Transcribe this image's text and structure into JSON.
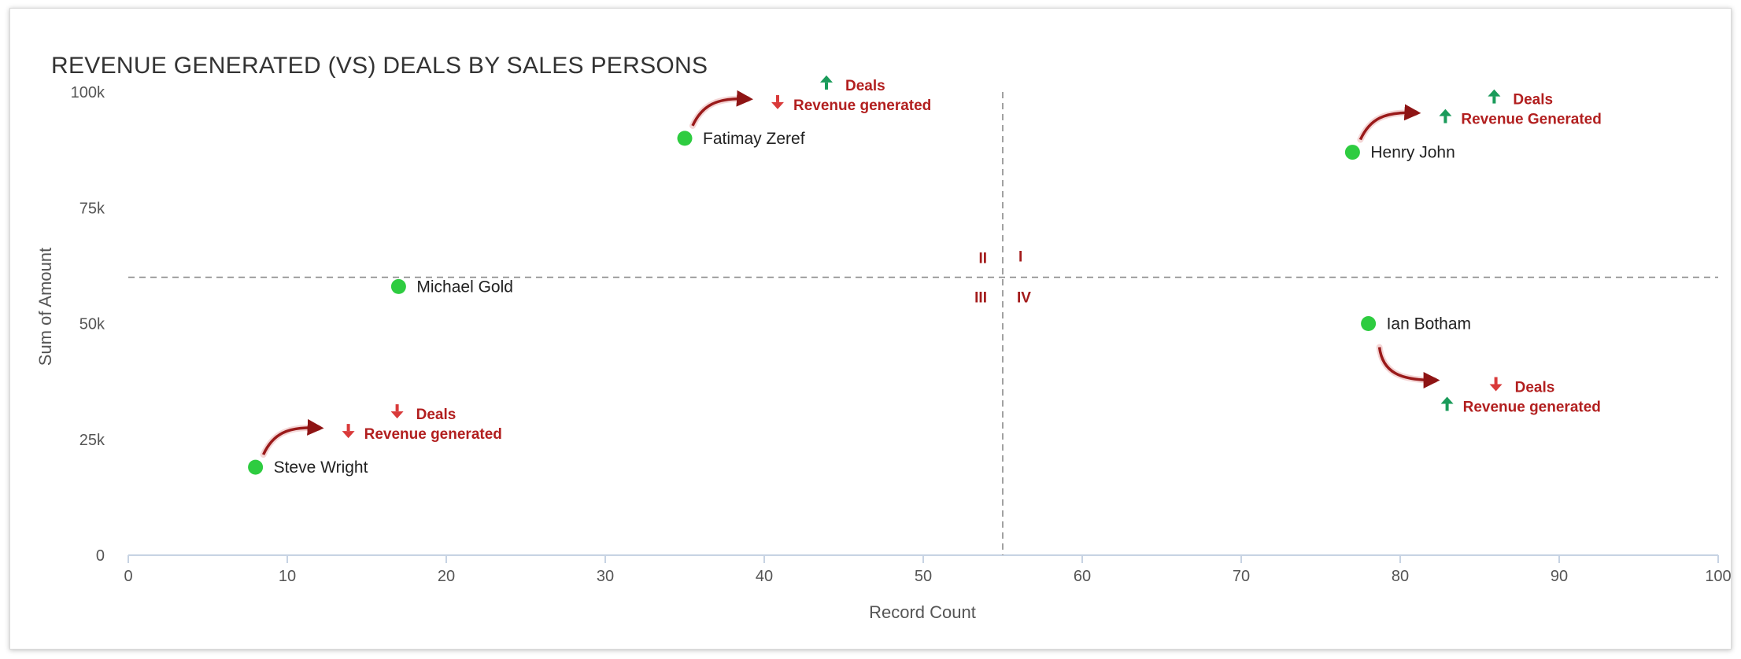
{
  "chart_data": {
    "type": "scatter",
    "title": "REVENUE GENERATED (VS) DEALS BY SALES PERSONS",
    "xlabel": "Record Count",
    "ylabel": "Sum of Amount",
    "xlim": [
      0,
      100
    ],
    "ylim": [
      0,
      100000
    ],
    "x_ticks": [
      {
        "value": 0,
        "label": "0"
      },
      {
        "value": 10,
        "label": "10"
      },
      {
        "value": 20,
        "label": "20"
      },
      {
        "value": 30,
        "label": "30"
      },
      {
        "value": 40,
        "label": "40"
      },
      {
        "value": 50,
        "label": "50"
      },
      {
        "value": 60,
        "label": "60"
      },
      {
        "value": 70,
        "label": "70"
      },
      {
        "value": 80,
        "label": "80"
      },
      {
        "value": 90,
        "label": "90"
      },
      {
        "value": 100,
        "label": "100"
      }
    ],
    "y_ticks": [
      {
        "value": 0,
        "label": "0"
      },
      {
        "value": 25000,
        "label": "25k"
      },
      {
        "value": 50000,
        "label": "50k"
      },
      {
        "value": 75000,
        "label": "75k"
      },
      {
        "value": 100000,
        "label": "100k"
      }
    ],
    "grid": false,
    "point_color": "#2ecc40",
    "up_color": "#1a9b5a",
    "down_color": "#d93a3a",
    "annotation_color": "#b21f1f",
    "reference_lines": {
      "x": 55,
      "y": 60000
    },
    "quadrant_labels": [
      {
        "label": "I",
        "position": "top-right"
      },
      {
        "label": "II",
        "position": "top-left"
      },
      {
        "label": "III",
        "position": "bottom-left"
      },
      {
        "label": "IV",
        "position": "bottom-right"
      }
    ],
    "points": [
      {
        "name": "Fatimay Zeref",
        "x": 35,
        "y": 90000,
        "deals": "up",
        "revenue": "down",
        "deals_label": "Deals",
        "revenue_label": "Revenue generated"
      },
      {
        "name": "Henry John",
        "x": 77,
        "y": 87000,
        "deals": "up",
        "revenue": "up",
        "deals_label": "Deals",
        "revenue_label": "Revenue Generated"
      },
      {
        "name": "Michael Gold",
        "x": 17,
        "y": 58000,
        "deals": null,
        "revenue": null,
        "deals_label": null,
        "revenue_label": null
      },
      {
        "name": "Ian Botham",
        "x": 78,
        "y": 50000,
        "deals": "down",
        "revenue": "up",
        "deals_label": "Deals",
        "revenue_label": "Revenue generated"
      },
      {
        "name": "Steve Wright",
        "x": 8,
        "y": 19000,
        "deals": "down",
        "revenue": "down",
        "deals_label": "Deals",
        "revenue_label": "Revenue generated"
      }
    ]
  }
}
